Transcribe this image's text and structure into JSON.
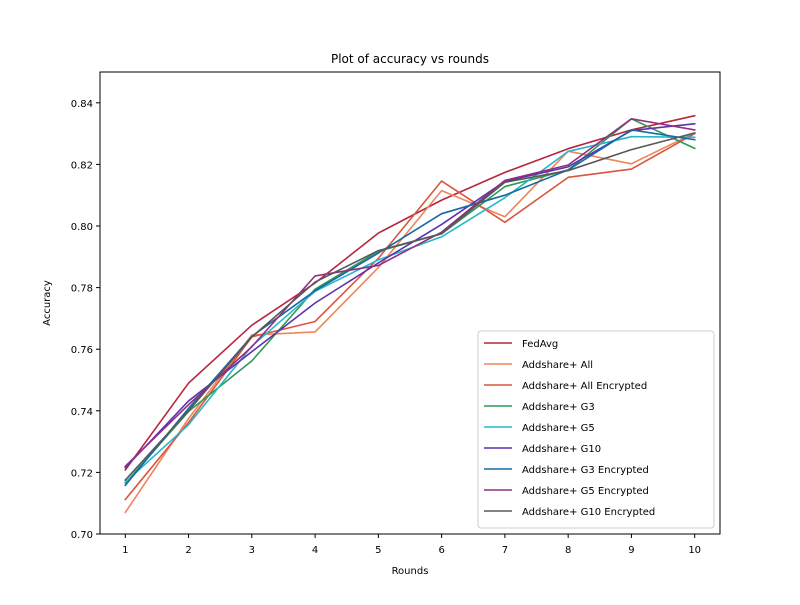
{
  "chart_data": {
    "type": "line",
    "title": "Plot of accuracy vs rounds",
    "xlabel": "Rounds",
    "ylabel": "Accuracy",
    "x": [
      1,
      2,
      3,
      4,
      5,
      6,
      7,
      8,
      9,
      10
    ],
    "xticks": [
      "1",
      "2",
      "3",
      "4",
      "5",
      "6",
      "7",
      "8",
      "9",
      "10"
    ],
    "xlim": [
      0.6,
      10.4
    ],
    "ylim": [
      0.7,
      0.85
    ],
    "yticks": [
      0.7,
      0.72,
      0.74,
      0.76,
      0.78,
      0.8,
      0.82,
      0.84
    ],
    "ytick_labels": [
      "0.70",
      "0.72",
      "0.74",
      "0.76",
      "0.78",
      "0.80",
      "0.82",
      "0.84"
    ],
    "grid": false,
    "legend_position": "lower-right",
    "series": [
      {
        "name": "FedAvg",
        "color": "#b5273f",
        "values": [
          0.7208,
          0.749,
          0.7678,
          0.7815,
          0.7977,
          0.8084,
          0.8174,
          0.8251,
          0.8312,
          0.8358
        ]
      },
      {
        "name": "Addshare+ All",
        "color": "#f0855a",
        "values": [
          0.707,
          0.7375,
          0.7646,
          0.7656,
          0.7865,
          0.8115,
          0.803,
          0.8243,
          0.8202,
          0.8302
        ]
      },
      {
        "name": "Addshare+ All Encrypted",
        "color": "#d9573e",
        "values": [
          0.7112,
          0.7362,
          0.764,
          0.769,
          0.7895,
          0.8146,
          0.8012,
          0.8158,
          0.8185,
          0.83
        ]
      },
      {
        "name": "Addshare+ G3",
        "color": "#2e9a56",
        "values": [
          0.7165,
          0.7398,
          0.7562,
          0.7795,
          0.7918,
          0.7975,
          0.8128,
          0.8182,
          0.8348,
          0.8252
        ]
      },
      {
        "name": "Addshare+ G5",
        "color": "#26b7c8",
        "values": [
          0.7168,
          0.7355,
          0.761,
          0.7788,
          0.789,
          0.7965,
          0.8092,
          0.8242,
          0.829,
          0.8288
        ]
      },
      {
        "name": "Addshare+ G10",
        "color": "#5a33b0",
        "values": [
          0.7215,
          0.7432,
          0.7592,
          0.775,
          0.788,
          0.8005,
          0.8145,
          0.8192,
          0.831,
          0.8332
        ]
      },
      {
        "name": "Addshare+ G3 Encrypted",
        "color": "#1668a8",
        "values": [
          0.7158,
          0.7408,
          0.7642,
          0.779,
          0.7912,
          0.804,
          0.81,
          0.8182,
          0.8312,
          0.828
        ]
      },
      {
        "name": "Addshare+ G5 Encrypted",
        "color": "#922f7e",
        "values": [
          0.722,
          0.742,
          0.7608,
          0.7838,
          0.7872,
          0.798,
          0.8148,
          0.8198,
          0.8348,
          0.8312
        ]
      },
      {
        "name": "Addshare+ G10 Encrypted",
        "color": "#585858",
        "values": [
          0.7175,
          0.74,
          0.764,
          0.7818,
          0.792,
          0.7975,
          0.8142,
          0.818,
          0.8248,
          0.8302
        ]
      }
    ]
  }
}
